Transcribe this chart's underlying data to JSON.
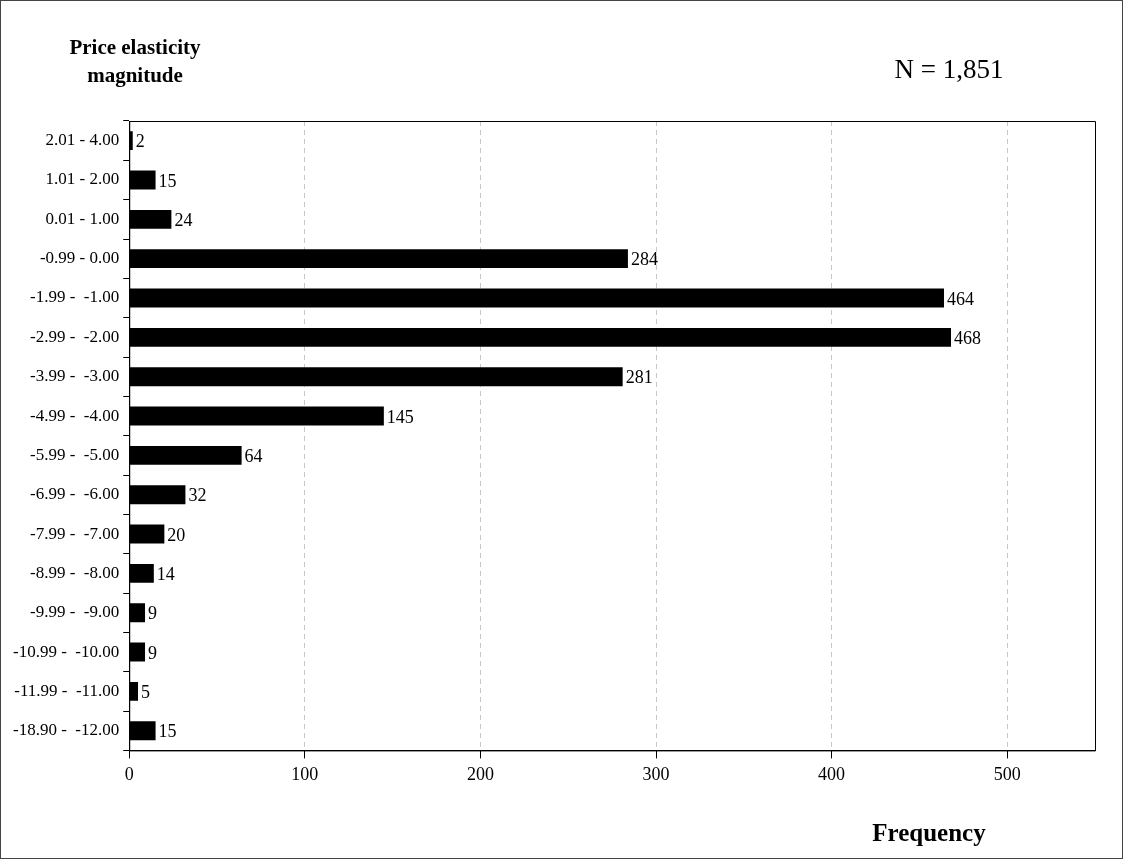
{
  "chart_data": {
    "type": "bar",
    "orientation": "horizontal",
    "ylabel": "Price elasticity magnitude",
    "xlabel": "Frequency",
    "annotations": [
      "N = 1,851"
    ],
    "categories": [
      "2.01 - 4.00",
      "1.01 - 2.00",
      "0.01 - 1.00",
      "-0.99 - 0.00",
      "-1.99 -  -1.00",
      "-2.99 -  -2.00",
      "-3.99 -  -3.00",
      "-4.99 -  -4.00",
      "-5.99 -  -5.00",
      "-6.99 -  -6.00",
      "-7.99 -  -7.00",
      "-8.99 -  -8.00",
      "-9.99 -  -9.00",
      "-10.99 -  -10.00",
      "-11.99 -  -11.00",
      "-18.90 -  -12.00"
    ],
    "values": [
      2,
      15,
      24,
      284,
      464,
      468,
      281,
      145,
      64,
      32,
      20,
      14,
      9,
      9,
      5,
      15
    ],
    "color": "#000000",
    "data_labels": true,
    "xlim": [
      0,
      550
    ],
    "xticks": [
      0,
      100,
      200,
      300,
      400,
      500
    ],
    "grid": "x",
    "legend": false
  }
}
